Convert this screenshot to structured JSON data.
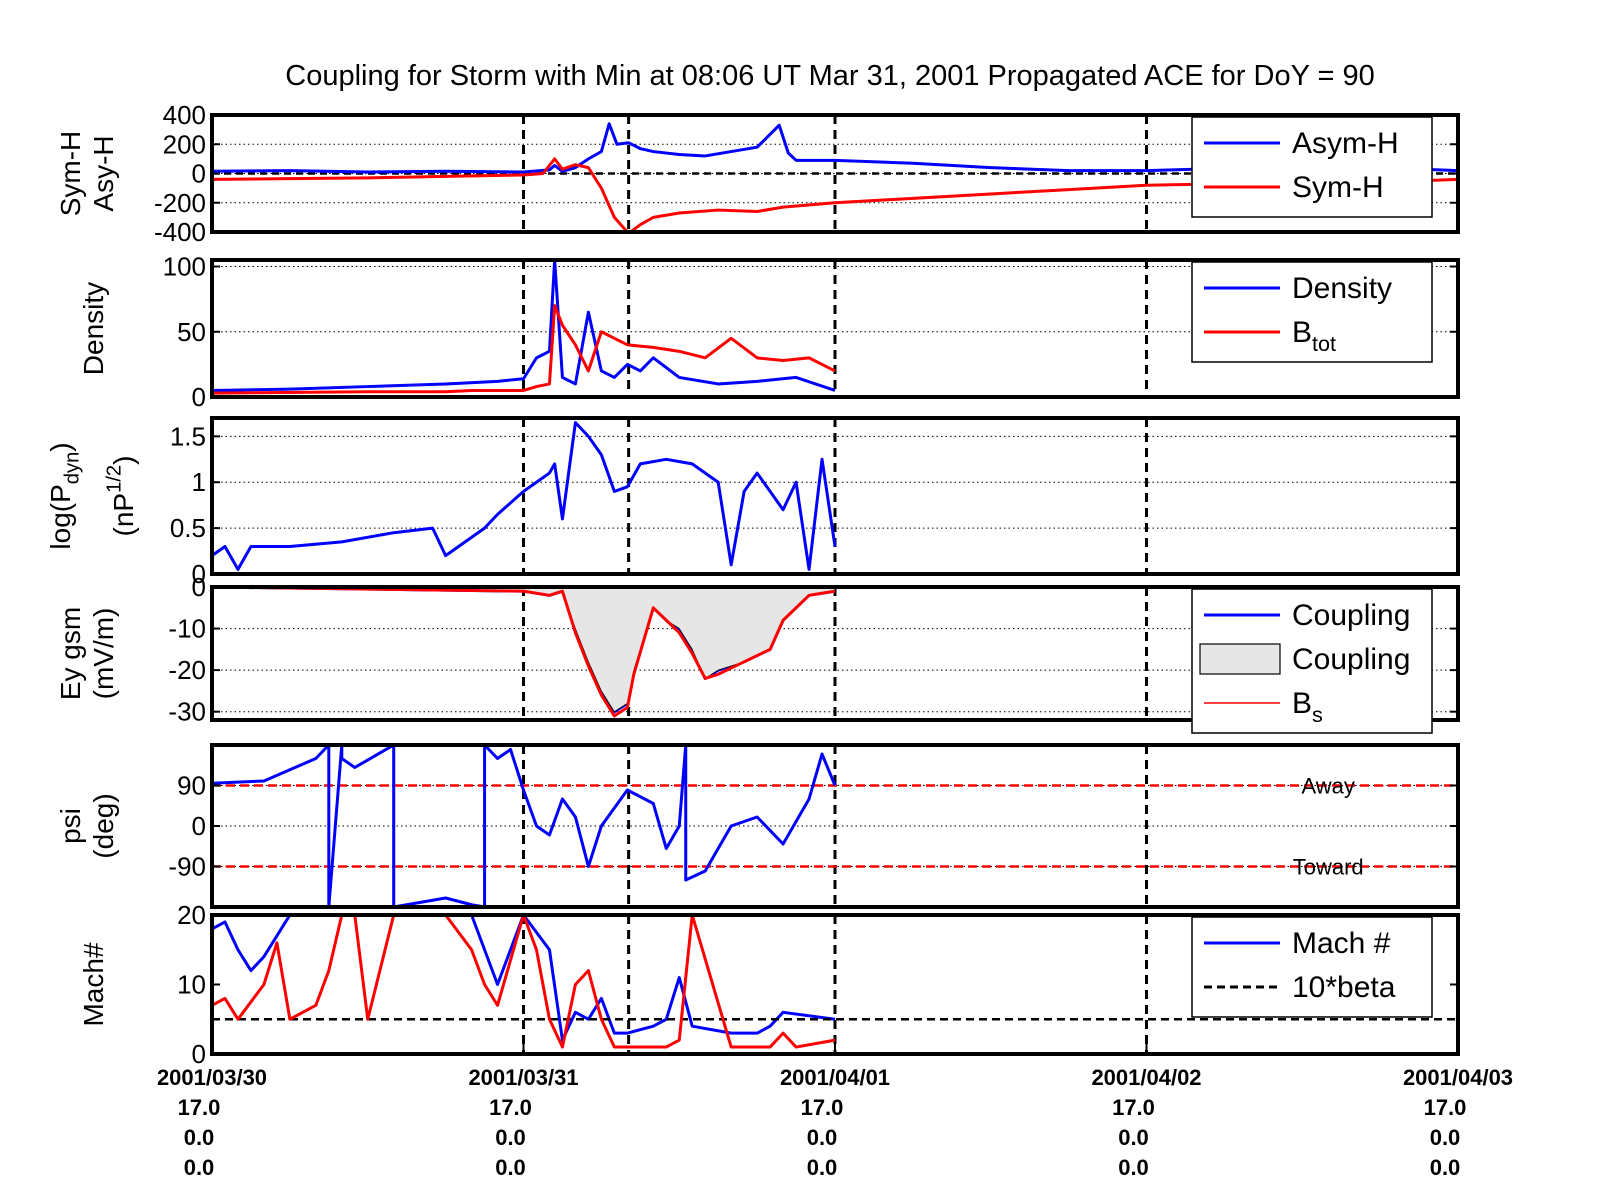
{
  "figure": {
    "title": "Coupling for Storm with Min at 08:06 UT Mar 31, 2001  Propagated ACE for DoY = 90",
    "colors": {
      "blue": "#0000ff",
      "red": "#ff0000",
      "black": "#000000",
      "fill_gray": "#e6e6e6"
    },
    "x_axis": {
      "range": [
        "2001/03/30 00:00",
        "2001/04/03 00:00"
      ],
      "major_ticks": [
        {
          "date": "2001/03/30",
          "line2": "17.0",
          "line3": "0.0",
          "line4": "0.0"
        },
        {
          "date": "2001/03/31",
          "line2": "17.0",
          "line3": "0.0",
          "line4": "0.0"
        },
        {
          "date": "2001/04/01",
          "line2": "17.0",
          "line3": "0.0",
          "line4": "0.0"
        },
        {
          "date": "2001/04/02",
          "line2": "17.0",
          "line3": "0.0",
          "line4": "0.0"
        },
        {
          "date": "2001/04/03",
          "line2": "17.0",
          "line3": "0.0",
          "line4": "0.0"
        }
      ],
      "storm_min_marker": "2001/03/31 08:06"
    }
  },
  "chart_data": [
    {
      "type": "line",
      "ylabel": [
        "Sym-H",
        "Asy-H"
      ],
      "ylim": [
        -400,
        400
      ],
      "yticks": [
        "400",
        "200",
        "0",
        "-200",
        "-400"
      ],
      "grid": true,
      "legend_position": "top-right",
      "reference_line_y": 0,
      "series": [
        {
          "name": "Asym-H",
          "color": "blue",
          "x": [
            "2001/03/30 00:00",
            "2001/03/30 06:00",
            "2001/03/30 12:00",
            "2001/03/30 18:00",
            "2001/03/31 00:00",
            "2001/03/31 02:00",
            "2001/03/31 02:24",
            "2001/03/31 03:00",
            "2001/03/31 04:00",
            "2001/03/31 05:00",
            "2001/03/31 06:00",
            "2001/03/31 06:36",
            "2001/03/31 07:12",
            "2001/03/31 08:06",
            "2001/03/31 09:00",
            "2001/03/31 10:00",
            "2001/03/31 12:00",
            "2001/03/31 14:00",
            "2001/03/31 18:00",
            "2001/03/31 19:42",
            "2001/03/31 20:24",
            "2001/03/31 21:00",
            "2001/04/01 00:00",
            "2001/04/01 06:00",
            "2001/04/01 12:00",
            "2001/04/01 18:00",
            "2001/04/02 00:00",
            "2001/04/02 06:00",
            "2001/04/02 12:00",
            "2001/04/02 18:00",
            "2001/04/03 00:00"
          ],
          "y": [
            15,
            20,
            10,
            15,
            10,
            25,
            55,
            15,
            40,
            100,
            150,
            340,
            200,
            210,
            170,
            150,
            130,
            120,
            180,
            330,
            140,
            90,
            90,
            70,
            40,
            20,
            20,
            35,
            50,
            40,
            20
          ]
        },
        {
          "name": "Sym-H",
          "color": "red",
          "x": [
            "2001/03/30 00:00",
            "2001/03/30 06:00",
            "2001/03/30 12:00",
            "2001/03/30 18:00",
            "2001/03/31 00:00",
            "2001/03/31 01:30",
            "2001/03/31 02:24",
            "2001/03/31 03:00",
            "2001/03/31 04:00",
            "2001/03/31 05:00",
            "2001/03/31 06:00",
            "2001/03/31 07:00",
            "2001/03/31 08:06",
            "2001/03/31 09:00",
            "2001/03/31 10:00",
            "2001/03/31 12:00",
            "2001/03/31 15:00",
            "2001/03/31 18:00",
            "2001/03/31 20:00",
            "2001/04/01 00:00",
            "2001/04/01 06:00",
            "2001/04/01 12:00",
            "2001/04/01 18:00",
            "2001/04/02 00:00",
            "2001/04/02 06:00",
            "2001/04/02 12:00",
            "2001/04/02 18:00",
            "2001/04/03 00:00"
          ],
          "y": [
            -40,
            -35,
            -30,
            -20,
            -10,
            0,
            100,
            30,
            60,
            40,
            -100,
            -300,
            -410,
            -350,
            -300,
            -270,
            -250,
            -260,
            -230,
            -200,
            -170,
            -140,
            -110,
            -80,
            -70,
            -90,
            -60,
            -40
          ]
        }
      ]
    },
    {
      "type": "line",
      "ylabel": [
        "Density"
      ],
      "ylim": [
        0,
        105
      ],
      "yticks": [
        "100",
        "50",
        "0"
      ],
      "grid": true,
      "legend_position": "top-right",
      "series": [
        {
          "name": "Density",
          "color": "blue",
          "x": [
            "2001/03/30 00:00",
            "2001/03/30 06:00",
            "2001/03/30 12:00",
            "2001/03/30 18:00",
            "2001/03/30 22:00",
            "2001/03/31 00:00",
            "2001/03/31 01:00",
            "2001/03/31 02:00",
            "2001/03/31 02:24",
            "2001/03/31 03:00",
            "2001/03/31 04:00",
            "2001/03/31 05:00",
            "2001/03/31 06:00",
            "2001/03/31 07:00",
            "2001/03/31 08:00",
            "2001/03/31 09:00",
            "2001/03/31 10:00",
            "2001/03/31 12:00",
            "2001/03/31 15:00",
            "2001/03/31 18:00",
            "2001/03/31 21:00",
            "2001/04/01 00:00"
          ],
          "y": [
            5,
            6,
            8,
            10,
            12,
            14,
            30,
            35,
            105,
            15,
            10,
            65,
            20,
            15,
            25,
            20,
            30,
            15,
            10,
            12,
            15,
            5
          ]
        },
        {
          "name": "B",
          "name_sub": "tot",
          "color": "red",
          "x": [
            "2001/03/30 00:00",
            "2001/03/30 12:00",
            "2001/03/30 18:00",
            "2001/03/30 20:00",
            "2001/03/31 00:00",
            "2001/03/31 01:00",
            "2001/03/31 02:00",
            "2001/03/31 02:24",
            "2001/03/31 03:00",
            "2001/03/31 04:00",
            "2001/03/31 05:00",
            "2001/03/31 06:00",
            "2001/03/31 07:00",
            "2001/03/31 08:00",
            "2001/03/31 10:00",
            "2001/03/31 12:00",
            "2001/03/31 14:00",
            "2001/03/31 16:00",
            "2001/03/31 18:00",
            "2001/03/31 20:00",
            "2001/03/31 22:00",
            "2001/04/01 00:00"
          ],
          "y": [
            3,
            4,
            4,
            5,
            5,
            8,
            10,
            70,
            55,
            40,
            20,
            50,
            45,
            40,
            38,
            35,
            30,
            45,
            30,
            28,
            30,
            20
          ]
        }
      ]
    },
    {
      "type": "line",
      "ylabel": [
        "log(P",
        "dyn",
        ")"
      ],
      "ylabel2": [
        "(nP",
        "1/2",
        ")"
      ],
      "ylim": [
        0,
        1.7
      ],
      "yticks": [
        "1.5",
        "1",
        "0.5",
        "0"
      ],
      "grid": true,
      "reference_line_y": 0,
      "series": [
        {
          "name": "",
          "color": "blue",
          "x": [
            "2001/03/30 00:00",
            "2001/03/30 01:00",
            "2001/03/30 02:00",
            "2001/03/30 03:00",
            "2001/03/30 06:00",
            "2001/03/30 10:00",
            "2001/03/30 14:00",
            "2001/03/30 17:00",
            "2001/03/30 18:00",
            "2001/03/30 21:00",
            "2001/03/30 22:00",
            "2001/03/31 00:00",
            "2001/03/31 01:00",
            "2001/03/31 02:00",
            "2001/03/31 02:24",
            "2001/03/31 03:00",
            "2001/03/31 04:00",
            "2001/03/31 05:00",
            "2001/03/31 06:00",
            "2001/03/31 07:00",
            "2001/03/31 08:00",
            "2001/03/31 09:00",
            "2001/03/31 11:00",
            "2001/03/31 13:00",
            "2001/03/31 15:00",
            "2001/03/31 16:00",
            "2001/03/31 17:00",
            "2001/03/31 18:00",
            "2001/03/31 20:00",
            "2001/03/31 21:00",
            "2001/03/31 22:00",
            "2001/03/31 23:00",
            "2001/04/01 00:00"
          ],
          "y": [
            0.2,
            0.3,
            0.05,
            0.3,
            0.3,
            0.35,
            0.45,
            0.5,
            0.2,
            0.5,
            0.65,
            0.9,
            1.0,
            1.1,
            1.2,
            0.6,
            1.65,
            1.5,
            1.3,
            0.9,
            0.95,
            1.2,
            1.25,
            1.2,
            1.0,
            0.1,
            0.9,
            1.1,
            0.7,
            1.0,
            0.05,
            1.25,
            0.3
          ]
        }
      ]
    },
    {
      "type": "area",
      "ylabel": [
        "Ey gsm",
        "(mV/m)"
      ],
      "ylim": [
        -32,
        0
      ],
      "yticks": [
        "0",
        "-10",
        "-20",
        "-30"
      ],
      "grid": true,
      "legend_position": "top-right",
      "series": [
        {
          "name": "Coupling",
          "color": "blue",
          "style": "line",
          "x": [
            "2001/03/30 00:00",
            "2001/03/31 00:00",
            "2001/03/31 02:00",
            "2001/03/31 03:00",
            "2001/03/31 04:00",
            "2001/03/31 05:00",
            "2001/03/31 06:00",
            "2001/03/31 07:00",
            "2001/03/31 08:00",
            "2001/03/31 08:30",
            "2001/03/31 10:00",
            "2001/03/31 11:00",
            "2001/03/31 12:00",
            "2001/03/31 13:00",
            "2001/03/31 14:00",
            "2001/03/31 15:00",
            "2001/03/31 17:00",
            "2001/03/31 19:00",
            "2001/03/31 20:00",
            "2001/03/31 21:00",
            "2001/03/31 22:00",
            "2001/04/01 00:00"
          ],
          "y": [
            0,
            -1,
            -2,
            -1,
            -10,
            -18,
            -25,
            -30,
            -28,
            -20,
            -5,
            -8,
            -10,
            -15,
            -22,
            -20,
            -18,
            -15,
            -8,
            -5,
            -2,
            -1
          ]
        },
        {
          "name": "Coupling",
          "color": "fill_gray",
          "style": "fill",
          "x": [
            "2001/03/30 00:00",
            "2001/03/31 00:00",
            "2001/03/31 02:00",
            "2001/03/31 03:00",
            "2001/03/31 04:00",
            "2001/03/31 05:00",
            "2001/03/31 06:00",
            "2001/03/31 07:00",
            "2001/03/31 08:00",
            "2001/03/31 08:30",
            "2001/03/31 10:00",
            "2001/03/31 11:00",
            "2001/03/31 12:00",
            "2001/03/31 13:00",
            "2001/03/31 14:00",
            "2001/03/31 15:00",
            "2001/03/31 17:00",
            "2001/03/31 19:00",
            "2001/03/31 20:00",
            "2001/03/31 21:00",
            "2001/03/31 22:00",
            "2001/04/01 00:00"
          ],
          "y": [
            0,
            -1,
            -2,
            -1,
            -10,
            -18,
            -25,
            -30,
            -28,
            -20,
            -5,
            -8,
            -10,
            -15,
            -22,
            -20,
            -18,
            -15,
            -8,
            -5,
            -2,
            -1
          ]
        },
        {
          "name": "B",
          "name_sub": "s",
          "color": "red",
          "style": "line",
          "x": [
            "2001/03/30 00:00",
            "2001/03/31 00:00",
            "2001/03/31 02:00",
            "2001/03/31 03:00",
            "2001/03/31 04:00",
            "2001/03/31 05:00",
            "2001/03/31 06:00",
            "2001/03/31 07:00",
            "2001/03/31 08:00",
            "2001/03/31 08:30",
            "2001/03/31 10:00",
            "2001/03/31 11:00",
            "2001/03/31 12:00",
            "2001/03/31 13:00",
            "2001/03/31 14:00",
            "2001/03/31 15:00",
            "2001/03/31 17:00",
            "2001/03/31 19:00",
            "2001/03/31 20:00",
            "2001/03/31 21:00",
            "2001/03/31 22:00",
            "2001/04/01 00:00"
          ],
          "y": [
            0,
            -1,
            -2,
            -1,
            -11,
            -19,
            -26,
            -31,
            -29,
            -21,
            -5,
            -8,
            -11,
            -16,
            -22,
            -21,
            -18,
            -15,
            -8,
            -5,
            -2,
            -1
          ]
        }
      ]
    },
    {
      "type": "line",
      "ylabel": [
        "psi",
        "(deg)"
      ],
      "ylim": [
        -180,
        180
      ],
      "yticks": [
        "90",
        "0",
        "-90"
      ],
      "grid": true,
      "annotations": [
        {
          "text": "Away",
          "x": "2001/04/02 14:00",
          "y": 90
        },
        {
          "text": "Toward",
          "x": "2001/04/02 14:00",
          "y": -90
        }
      ],
      "reference_lines": [
        {
          "y": 90,
          "color": "red"
        },
        {
          "y": -90,
          "color": "red"
        }
      ],
      "series": [
        {
          "name": "",
          "color": "blue",
          "x": [
            "2001/03/30 00:00",
            "2001/03/30 04:00",
            "2001/03/30 08:00",
            "2001/03/30 09:00",
            "2001/03/30 09:00",
            "2001/03/30 10:00",
            "2001/03/30 10:00",
            "2001/03/30 11:00",
            "2001/03/30 14:00",
            "2001/03/30 14:00",
            "2001/03/30 18:00",
            "2001/03/30 20:00",
            "2001/03/30 21:00",
            "2001/03/30 21:00",
            "2001/03/30 22:00",
            "2001/03/30 23:00",
            "2001/03/31 00:00",
            "2001/03/31 01:00",
            "2001/03/31 02:00",
            "2001/03/31 03:00",
            "2001/03/31 04:00",
            "2001/03/31 05:00",
            "2001/03/31 06:00",
            "2001/03/31 08:00",
            "2001/03/31 10:00",
            "2001/03/31 11:00",
            "2001/03/31 12:00",
            "2001/03/31 12:30",
            "2001/03/31 12:30",
            "2001/03/31 14:00",
            "2001/03/31 16:00",
            "2001/03/31 18:00",
            "2001/03/31 20:00",
            "2001/03/31 22:00",
            "2001/03/31 23:00",
            "2001/04/01 00:00"
          ],
          "y": [
            95,
            100,
            150,
            180,
            -180,
            180,
            150,
            130,
            180,
            -180,
            -160,
            -175,
            -180,
            180,
            150,
            170,
            80,
            0,
            -20,
            60,
            20,
            -90,
            0,
            80,
            50,
            -50,
            0,
            180,
            -120,
            -100,
            0,
            20,
            -40,
            60,
            160,
            90
          ]
        }
      ]
    },
    {
      "type": "line",
      "ylabel": [
        "Mach#"
      ],
      "ylim": [
        0,
        20
      ],
      "yticks": [
        "20",
        "10",
        "0"
      ],
      "grid": false,
      "legend_position": "top-right",
      "series": [
        {
          "name": "Mach #",
          "color": "blue",
          "x": [
            "2001/03/30 00:00",
            "2001/03/30 01:00",
            "2001/03/30 02:00",
            "2001/03/30 03:00",
            "2001/03/30 04:00",
            "2001/03/30 06:00",
            "2001/03/30 08:00",
            "2001/03/30 12:00",
            "2001/03/30 16:00",
            "2001/03/30 20:00",
            "2001/03/30 21:00",
            "2001/03/30 22:00",
            "2001/03/31 00:00",
            "2001/03/31 02:00",
            "2001/03/31 03:00",
            "2001/03/31 04:00",
            "2001/03/31 05:00",
            "2001/03/31 06:00",
            "2001/03/31 07:00",
            "2001/03/31 08:00",
            "2001/03/31 10:00",
            "2001/03/31 11:00",
            "2001/03/31 12:00",
            "2001/03/31 13:00",
            "2001/03/31 16:00",
            "2001/03/31 18:00",
            "2001/03/31 19:00",
            "2001/03/31 20:00",
            "2001/04/01 00:00"
          ],
          "y": [
            18,
            19,
            15,
            12,
            14,
            20,
            20,
            20,
            20,
            20,
            15,
            10,
            20,
            15,
            2,
            6,
            5,
            8,
            3,
            3,
            4,
            5,
            11,
            4,
            3,
            3,
            4,
            6,
            5
          ]
        },
        {
          "name": "10*beta",
          "color": "black",
          "style": "dashed",
          "x": [
            "2001/03/30 00:00",
            "2001/04/03 00:00"
          ],
          "y": [
            5,
            5
          ]
        },
        {
          "name": "",
          "color": "red",
          "x": [
            "2001/03/30 00:00",
            "2001/03/30 01:00",
            "2001/03/30 02:00",
            "2001/03/30 04:00",
            "2001/03/30 05:00",
            "2001/03/30 06:00",
            "2001/03/30 08:00",
            "2001/03/30 09:00",
            "2001/03/30 10:00",
            "2001/03/30 11:00",
            "2001/03/30 12:00",
            "2001/03/30 14:00",
            "2001/03/30 16:00",
            "2001/03/30 18:00",
            "2001/03/30 20:00",
            "2001/03/30 21:00",
            "2001/03/30 22:00",
            "2001/03/31 00:00",
            "2001/03/31 01:00",
            "2001/03/31 02:00",
            "2001/03/31 03:00",
            "2001/03/31 04:00",
            "2001/03/31 05:00",
            "2001/03/31 06:00",
            "2001/03/31 07:00",
            "2001/03/31 09:00",
            "2001/03/31 11:00",
            "2001/03/31 12:00",
            "2001/03/31 13:00",
            "2001/03/31 16:00",
            "2001/03/31 18:00",
            "2001/03/31 19:00",
            "2001/03/31 20:00",
            "2001/03/31 21:00",
            "2001/04/01 00:00"
          ],
          "y": [
            7,
            8,
            5,
            10,
            16,
            5,
            7,
            12,
            20,
            20,
            5,
            20,
            20,
            20,
            15,
            10,
            7,
            20,
            15,
            5,
            1,
            10,
            12,
            5,
            1,
            1,
            1,
            2,
            20,
            1,
            1,
            1,
            3,
            1,
            2
          ]
        }
      ]
    }
  ]
}
